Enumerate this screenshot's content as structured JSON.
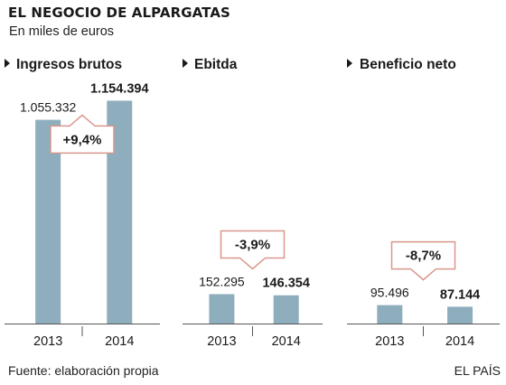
{
  "header": {
    "title": "EL NEGOCIO DE ALPARGATAS",
    "subtitle": "En miles de euros"
  },
  "footer": {
    "source": "Fuente: elaboración propia",
    "brand": "EL PAÍS"
  },
  "colors": {
    "bar": "#8eadbd",
    "callout_border": "#d9978c",
    "text": "#1a1a1a",
    "axis": "#555555"
  },
  "chart_data": [
    {
      "type": "bar",
      "title": "Ingresos brutos",
      "categories": [
        "2013",
        "2014"
      ],
      "values": [
        1055332,
        1154394
      ],
      "value_labels": [
        "1.055.332",
        "1.154.394"
      ],
      "change_label": "+9,4%",
      "change_direction": "up",
      "ylim": [
        0,
        1250000
      ],
      "grid": false
    },
    {
      "type": "bar",
      "title": "Ebitda",
      "categories": [
        "2013",
        "2014"
      ],
      "values": [
        152295,
        146354
      ],
      "value_labels": [
        "152.295",
        "146.354"
      ],
      "change_label": "-3,9%",
      "change_direction": "down",
      "ylim": [
        0,
        1250000
      ],
      "grid": false
    },
    {
      "type": "bar",
      "title": "Beneficio neto",
      "categories": [
        "2013",
        "2014"
      ],
      "values": [
        95496,
        87144
      ],
      "value_labels": [
        "95.496",
        "87.144"
      ],
      "change_label": "-8,7%",
      "change_direction": "down",
      "ylim": [
        0,
        1250000
      ],
      "grid": false
    }
  ]
}
